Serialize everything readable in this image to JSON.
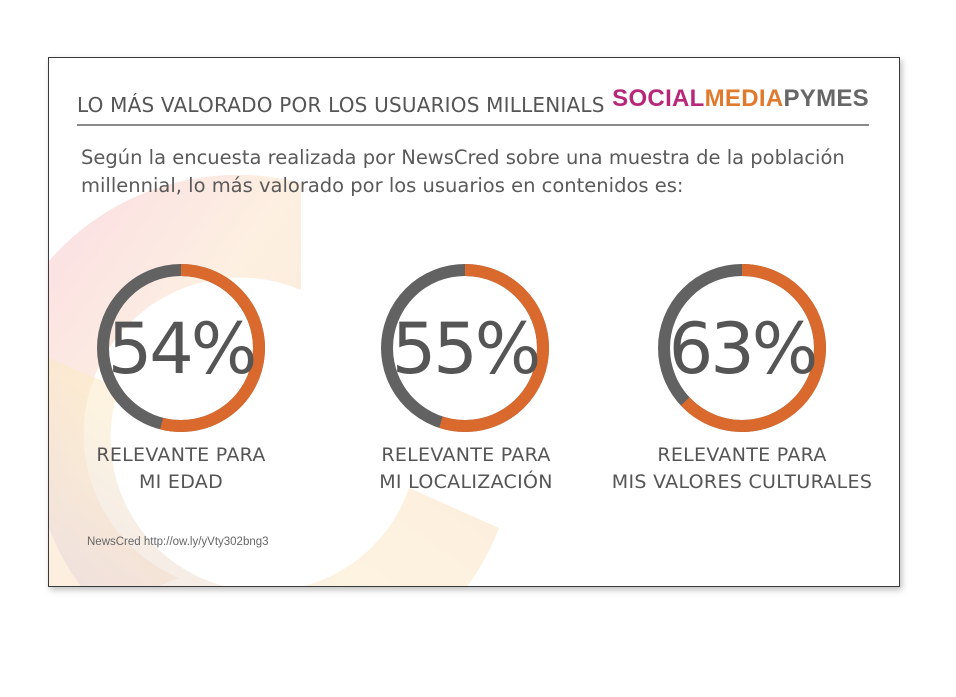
{
  "header": {
    "title": "LO MÁS VALORADO POR LOS USUARIOS MILLENIALS",
    "brand": [
      {
        "text": "SOCIAL",
        "color": "#b8287a"
      },
      {
        "text": "MEDIA",
        "color": "#e07a2e"
      },
      {
        "text": "PYMES",
        "color": "#666666"
      }
    ]
  },
  "intro": "Según la encuesta realizada por NewsCred sobre una muestra de la población millennial, lo más valorado por los usuarios en contenidos es:",
  "colors": {
    "accent": "#d9692d",
    "track": "#626262",
    "text": "#555555"
  },
  "chart_data": {
    "type": "donut",
    "items": [
      {
        "value": 54,
        "display": "54%",
        "label_line1": "RELEVANTE PARA",
        "label_line2": "MI EDAD"
      },
      {
        "value": 55,
        "display": "55%",
        "label_line1": "RELEVANTE PARA",
        "label_line2": "MI LOCALIZACIÓN"
      },
      {
        "value": 63,
        "display": "63%",
        "label_line1": "RELEVANTE PARA",
        "label_line2": "MIS VALORES CULTURALES"
      }
    ]
  },
  "source": "NewsCred http://ow.ly/yVty302bng3"
}
